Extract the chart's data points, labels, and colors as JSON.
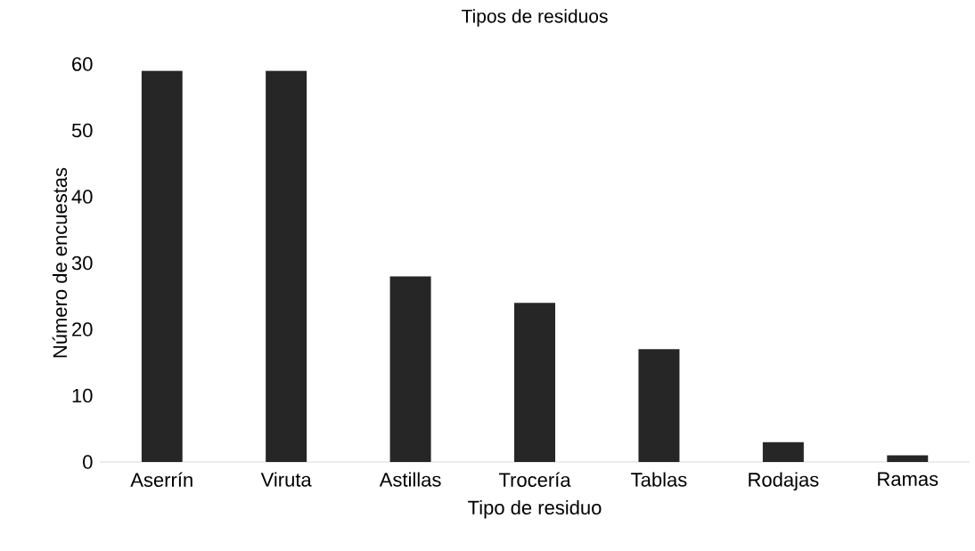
{
  "chart_data": {
    "type": "bar",
    "title": "Tipos de residuos",
    "xlabel": "Tipo de residuo",
    "ylabel": "Número de encuestas",
    "categories": [
      "Aserrín",
      "Viruta",
      "Astillas",
      "Trocería",
      "Tablas",
      "Rodajas",
      "Ramas"
    ],
    "values": [
      59,
      59,
      28,
      24,
      17,
      3,
      1
    ],
    "color": "#262626",
    "ylim": [
      0,
      60
    ],
    "yticks": [
      0,
      10,
      20,
      30,
      40,
      50,
      60
    ],
    "grid": false
  }
}
